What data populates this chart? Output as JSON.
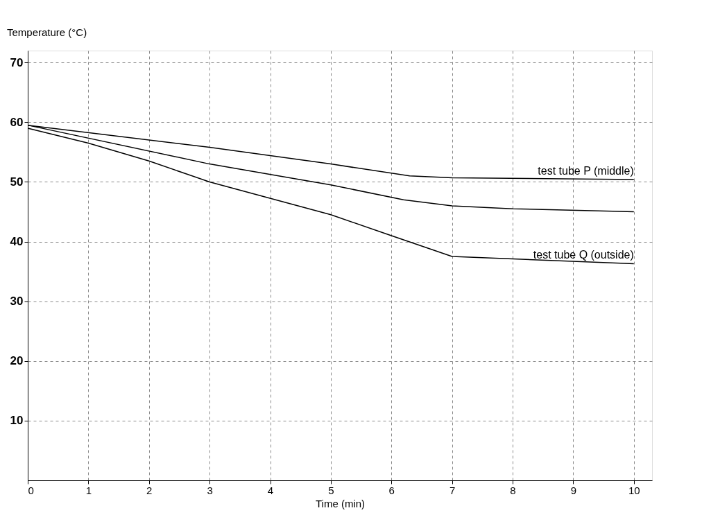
{
  "chart_data": {
    "type": "line",
    "xlabel": "Time (min)",
    "ylabel": "Temperature (°C)",
    "xlim": [
      0,
      10.3
    ],
    "ylim": [
      0,
      72
    ],
    "xticks": [
      0,
      1,
      2,
      3,
      4,
      5,
      6,
      7,
      8,
      9,
      10
    ],
    "yticks": [
      10,
      20,
      30,
      40,
      50,
      60,
      70
    ],
    "grid": true,
    "legend": false,
    "marker": "none",
    "line_style": "solid",
    "series": [
      {
        "name": "test tube P (middle)",
        "color": "#000000",
        "x": [
          0,
          3,
          5,
          6.3,
          7,
          10
        ],
        "values": [
          59.5,
          55.8,
          53,
          51,
          50.7,
          50.4
        ]
      },
      {
        "color": "#000000",
        "x": [
          0,
          3,
          5,
          6.2,
          7,
          8,
          10
        ],
        "values": [
          59.5,
          53,
          49.5,
          47,
          46,
          45.5,
          45
        ]
      },
      {
        "name": "test tube Q (outside)",
        "color": "#000000",
        "x": [
          0,
          1,
          2,
          3,
          5,
          6,
          7,
          10
        ],
        "values": [
          59,
          56.5,
          53.5,
          50,
          44.5,
          41,
          37.5,
          36.3
        ]
      }
    ]
  }
}
